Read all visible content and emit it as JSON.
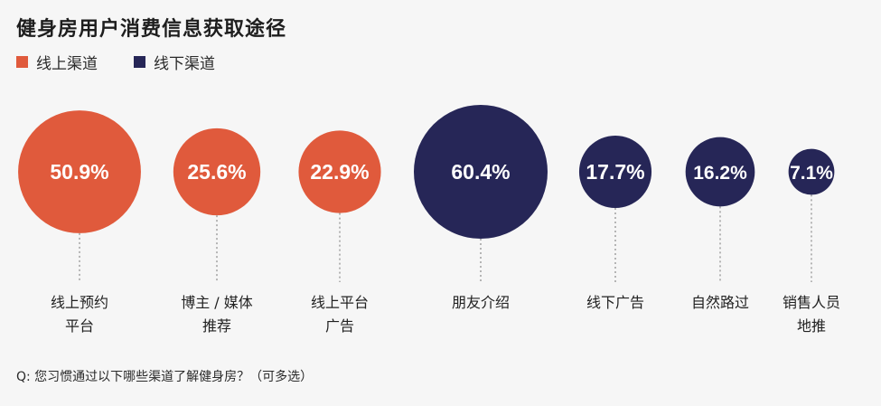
{
  "chart_data": {
    "type": "bubble",
    "title": "健身房用户消费信息获取途径",
    "legend": [
      {
        "name": "线上渠道",
        "color": "#e05a3c"
      },
      {
        "name": "线下渠道",
        "color": "#262657"
      }
    ],
    "items": [
      {
        "label_lines": [
          "线上预约",
          "平台"
        ],
        "value": 50.9,
        "value_label": "50.9%",
        "group": "线上渠道"
      },
      {
        "label_lines": [
          "博主 / 媒体",
          "推荐"
        ],
        "value": 25.6,
        "value_label": "25.6%",
        "group": "线上渠道"
      },
      {
        "label_lines": [
          "线上平台",
          "广告"
        ],
        "value": 22.9,
        "value_label": "22.9%",
        "group": "线上渠道"
      },
      {
        "label_lines": [
          "朋友介绍"
        ],
        "value": 60.4,
        "value_label": "60.4%",
        "group": "线下渠道"
      },
      {
        "label_lines": [
          "线下广告"
        ],
        "value": 17.7,
        "value_label": "17.7%",
        "group": "线下渠道"
      },
      {
        "label_lines": [
          "自然路过"
        ],
        "value": 16.2,
        "value_label": "16.2%",
        "group": "线下渠道"
      },
      {
        "label_lines": [
          "销售人员",
          "地推"
        ],
        "value": 7.1,
        "value_label": "7.1%",
        "group": "线下渠道"
      }
    ],
    "note": "Q: 您习惯通过以下哪些渠道了解健身房？（可多选）"
  }
}
